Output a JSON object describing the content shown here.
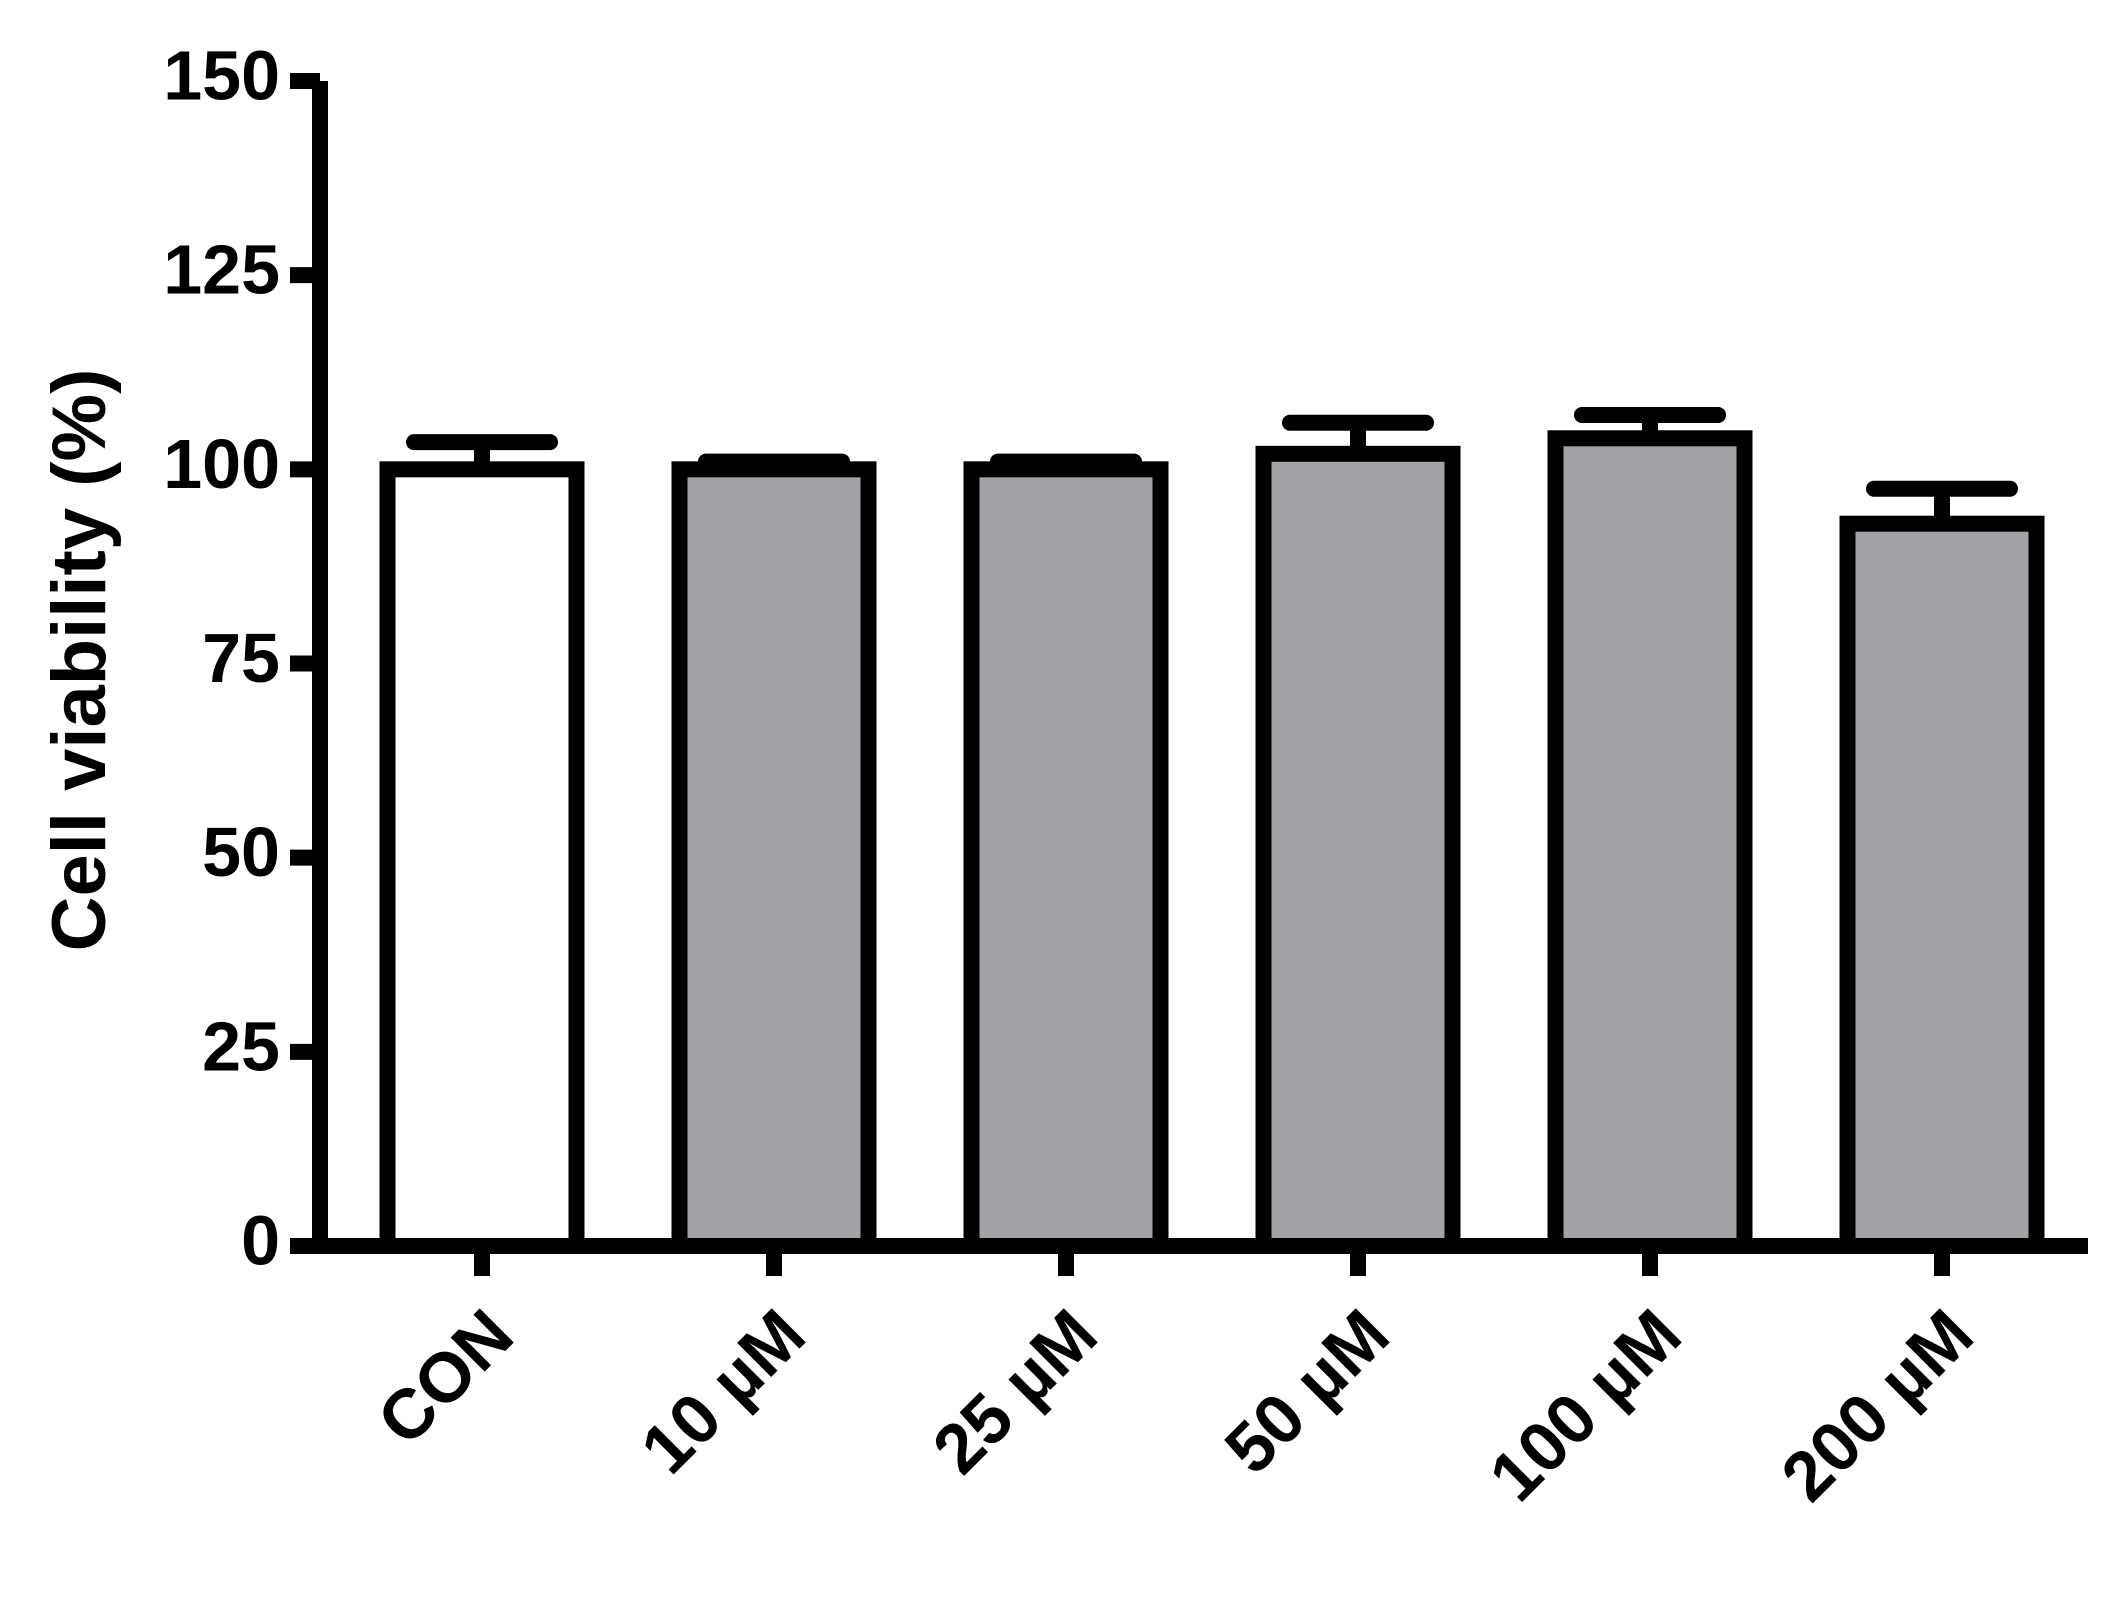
{
  "chart_data": {
    "type": "bar",
    "y_label": "Cell viability (%)",
    "categories": [
      "CON",
      "10 µM",
      "25 µM",
      "50 µM",
      "100 µM",
      "200 µM"
    ],
    "values": [
      100,
      100,
      100,
      102,
      104,
      93
    ],
    "errors": [
      3.5,
      1,
      1,
      4,
      3,
      4.5
    ],
    "colors": [
      "#ffffff",
      "#a3a2a7",
      "#a3a2a7",
      "#a3a2a7",
      "#a3a2a7",
      "#a3a2a7"
    ],
    "ylim": [
      0,
      150
    ],
    "yticks": [
      0,
      25,
      50,
      75,
      100,
      125,
      150
    ],
    "grid": false
  }
}
